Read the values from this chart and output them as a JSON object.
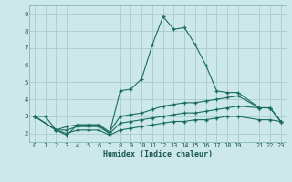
{
  "xlabel": "Humidex (Indice chaleur)",
  "bg_color": "#cce8e8",
  "grid_color": "#aacccc",
  "line_color": "#1a6b60",
  "xlim": [
    -0.5,
    23.5
  ],
  "ylim": [
    1.5,
    9.5
  ],
  "xticks": [
    0,
    1,
    2,
    3,
    4,
    5,
    6,
    7,
    8,
    9,
    10,
    11,
    12,
    13,
    14,
    15,
    16,
    17,
    18,
    19,
    21,
    22,
    23
  ],
  "yticks": [
    2,
    3,
    4,
    5,
    6,
    7,
    8,
    9
  ],
  "series1_x": [
    0,
    1,
    2,
    3,
    4,
    5,
    6,
    7,
    8,
    9,
    10,
    11,
    12,
    13,
    14,
    15,
    16,
    17,
    18,
    19,
    21,
    22,
    23
  ],
  "series1_y": [
    3.0,
    3.0,
    2.2,
    1.9,
    2.5,
    2.5,
    2.5,
    2.0,
    4.5,
    4.6,
    5.2,
    7.2,
    8.85,
    8.1,
    8.2,
    7.2,
    6.0,
    4.5,
    4.4,
    4.4,
    3.5,
    3.5,
    2.7
  ],
  "series2_x": [
    0,
    2,
    3,
    4,
    5,
    6,
    7,
    8,
    9,
    10,
    11,
    12,
    13,
    14,
    15,
    16,
    17,
    18,
    19,
    21,
    22,
    23
  ],
  "series2_y": [
    3.0,
    2.2,
    2.4,
    2.5,
    2.5,
    2.5,
    2.1,
    3.0,
    3.1,
    3.2,
    3.4,
    3.6,
    3.7,
    3.8,
    3.8,
    3.9,
    4.0,
    4.1,
    4.2,
    3.5,
    3.5,
    2.7
  ],
  "series3_x": [
    0,
    2,
    3,
    4,
    5,
    6,
    7,
    8,
    9,
    10,
    11,
    12,
    13,
    14,
    15,
    16,
    17,
    18,
    19,
    21,
    22,
    23
  ],
  "series3_y": [
    3.0,
    2.2,
    2.2,
    2.4,
    2.4,
    2.4,
    2.0,
    2.6,
    2.7,
    2.8,
    2.9,
    3.0,
    3.1,
    3.2,
    3.2,
    3.3,
    3.4,
    3.5,
    3.6,
    3.5,
    3.5,
    2.7
  ],
  "series4_x": [
    0,
    2,
    3,
    4,
    5,
    6,
    7,
    8,
    9,
    10,
    11,
    12,
    13,
    14,
    15,
    16,
    17,
    18,
    19,
    21,
    22,
    23
  ],
  "series4_y": [
    3.0,
    2.2,
    2.0,
    2.2,
    2.2,
    2.2,
    1.9,
    2.2,
    2.3,
    2.4,
    2.5,
    2.6,
    2.7,
    2.7,
    2.8,
    2.8,
    2.9,
    3.0,
    3.0,
    2.8,
    2.8,
    2.7
  ]
}
